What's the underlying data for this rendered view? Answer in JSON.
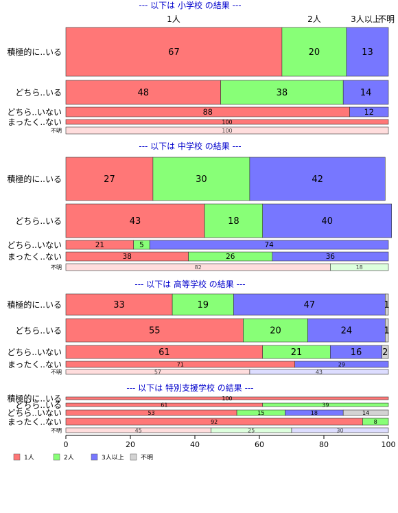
{
  "chart_data": {
    "type": "bar",
    "orientation": "horizontal",
    "stacked": true,
    "xlim": [
      0,
      100
    ],
    "x_ticks": [
      "0",
      "20",
      "40",
      "60",
      "80",
      "100"
    ],
    "top_labels": [
      "1人",
      "2人",
      "3人以上",
      "不明"
    ],
    "colors": {
      "1人": "#ff7777",
      "2人": "#88ff77",
      "3人以上": "#7777ff",
      "不明": "#d3d3d3"
    },
    "colors_light": {
      "1人": "#ffdddd",
      "2人": "#ddffdd",
      "3人以上": "#ddddff",
      "不明": "#f0f0f0"
    },
    "legend": [
      "1人",
      "2人",
      "3人以上",
      "不明"
    ],
    "panels": [
      {
        "title": "--- 以下は 小学校 の結果 ---",
        "rows": [
          {
            "label": "積極的に..いる",
            "values": [
              67,
              20,
              13,
              0
            ]
          },
          {
            "label": "どちら..いる",
            "values": [
              48,
              38,
              14,
              0
            ]
          },
          {
            "label": "どちら..いない",
            "values": [
              88,
              0,
              12,
              0
            ]
          },
          {
            "label": "まったく..ない",
            "values": [
              100,
              0,
              0,
              0
            ]
          },
          {
            "label": "不明",
            "values": [
              100,
              0,
              0,
              0
            ]
          }
        ]
      },
      {
        "title": "--- 以下は 中学校 の結果 ---",
        "rows": [
          {
            "label": "積極的に..いる",
            "values": [
              27,
              30,
              42,
              0
            ]
          },
          {
            "label": "どちら..いる",
            "values": [
              43,
              18,
              40,
              0
            ]
          },
          {
            "label": "どちら..いない",
            "values": [
              21,
              5,
              74,
              0
            ]
          },
          {
            "label": "まったく..ない",
            "values": [
              38,
              26,
              36,
              0
            ]
          },
          {
            "label": "不明",
            "values": [
              82,
              18,
              0,
              0
            ]
          }
        ]
      },
      {
        "title": "--- 以下は 高等学校 の結果 ---",
        "rows": [
          {
            "label": "積極的に..いる",
            "values": [
              33,
              19,
              47,
              1
            ]
          },
          {
            "label": "どちら..いる",
            "values": [
              55,
              20,
              24,
              1
            ]
          },
          {
            "label": "どちら..いない",
            "values": [
              61,
              21,
              16,
              2
            ]
          },
          {
            "label": "まったく..ない",
            "values": [
              71,
              0,
              29,
              0
            ]
          },
          {
            "label": "不明",
            "values": [
              57,
              0,
              43,
              0
            ]
          }
        ]
      },
      {
        "title": "--- 以下は 特別支援学校 の結果 ---",
        "rows": [
          {
            "label": "積極的に..いる",
            "values": [
              100,
              0,
              0,
              0
            ]
          },
          {
            "label": "どちら..いる",
            "values": [
              61,
              39,
              0,
              0
            ]
          },
          {
            "label": "どちら..いない",
            "values": [
              53,
              15,
              18,
              14
            ]
          },
          {
            "label": "まったく..ない",
            "values": [
              92,
              8,
              0,
              0
            ]
          },
          {
            "label": "不明",
            "values": [
              45,
              25,
              30,
              0
            ]
          }
        ]
      }
    ]
  }
}
